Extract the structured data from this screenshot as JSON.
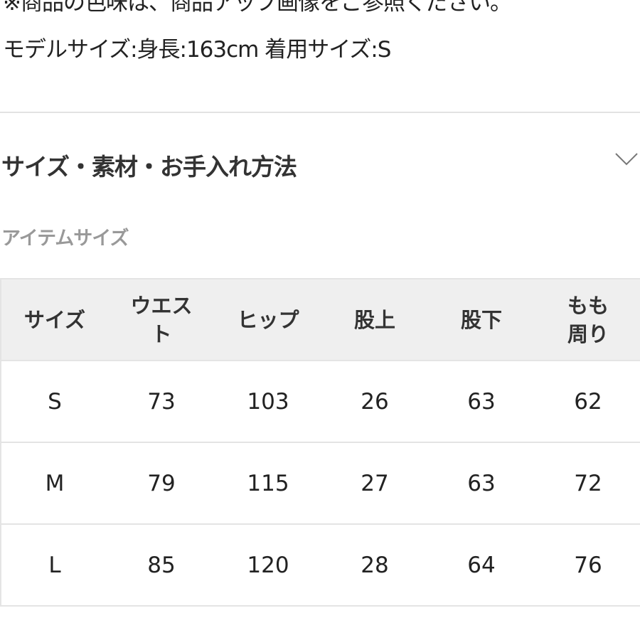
{
  "notes": {
    "color_note": "※商品の色味は、商品アップ画像をご参照ください。",
    "model_info": "モデルサイズ:身長:163cm 着用サイズ:S"
  },
  "accordion": {
    "title": "サイズ・素材・お手入れ方法",
    "icon": "chevron-down-icon"
  },
  "section_label": "アイテムサイズ",
  "size_table": {
    "headers": [
      "サイズ",
      "ウエスト",
      "ヒップ",
      "股上",
      "股下",
      "もも周り"
    ],
    "rows": [
      [
        "S",
        "73",
        "103",
        "26",
        "63",
        "62"
      ],
      [
        "M",
        "79",
        "115",
        "27",
        "63",
        "72"
      ],
      [
        "L",
        "85",
        "120",
        "28",
        "64",
        "76"
      ]
    ]
  }
}
